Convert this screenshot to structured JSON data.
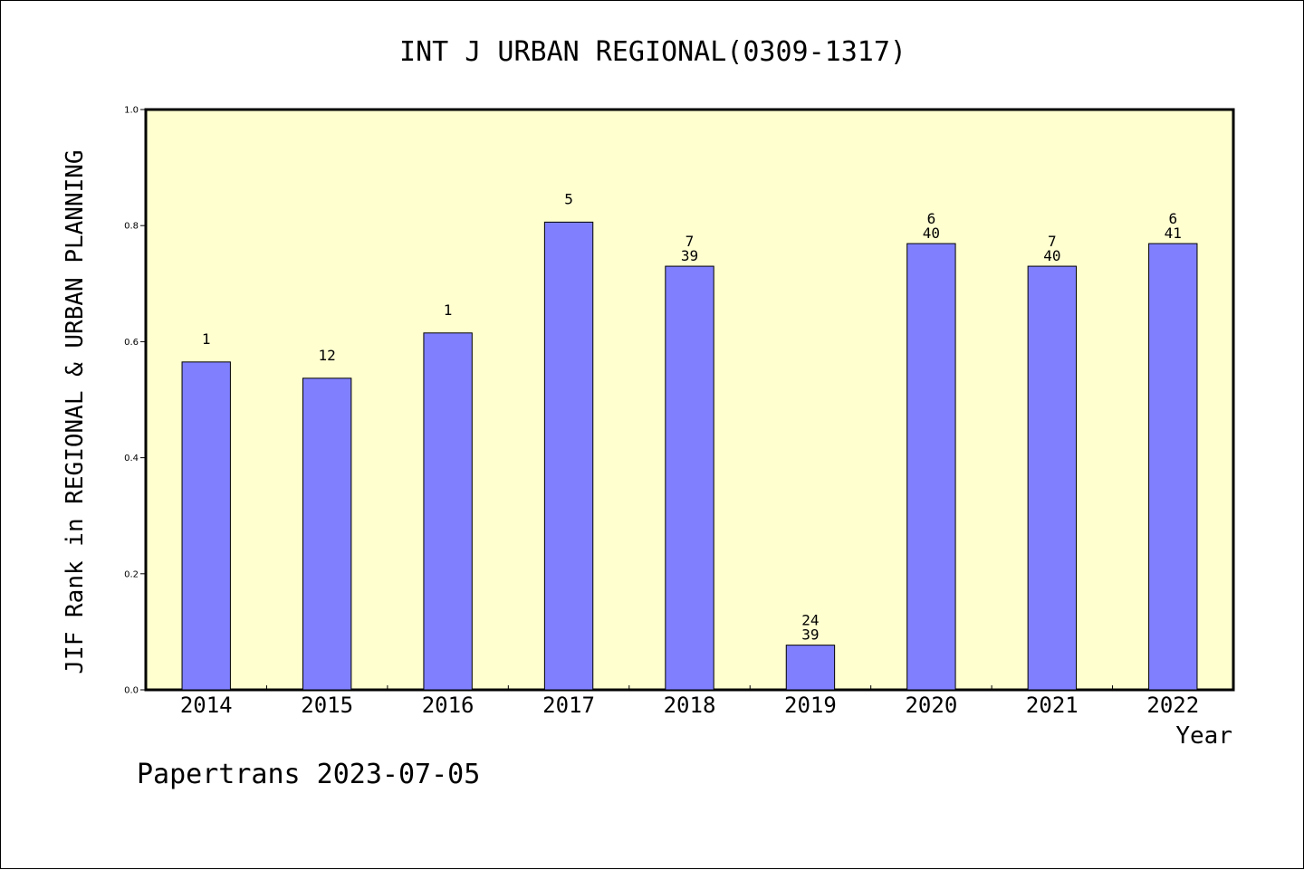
{
  "footer": "Papertrans 2023-07-05",
  "chart_data": {
    "type": "bar",
    "title": "INT J URBAN REGIONAL(0309-1317)",
    "xlabel": "Year",
    "ylabel": "JIF Rank in REGIONAL & URBAN PLANNING",
    "ylim": [
      0,
      1.0
    ],
    "y_ticks": [
      "0.0",
      "0.2",
      "0.4",
      "0.6",
      "0.8",
      "1.0"
    ],
    "grid": false,
    "legend": "none",
    "colors": {
      "plot_background": "#ffffd0",
      "bar_fill": "#8080ff",
      "bar_stroke": "#000000"
    },
    "categories": [
      "2014",
      "2015",
      "2016",
      "2017",
      "2018",
      "2019",
      "2020",
      "2021",
      "2022"
    ],
    "values": [
      0.565,
      0.537,
      0.615,
      0.806,
      0.73,
      0.077,
      0.769,
      0.73,
      0.769
    ],
    "labels_top": [
      "1",
      "12",
      "1",
      "5",
      "7",
      "24",
      "6",
      "7",
      "6"
    ],
    "labels_bottom": [
      "",
      "",
      "",
      "",
      "39",
      "39",
      "40",
      "40",
      "41"
    ]
  }
}
